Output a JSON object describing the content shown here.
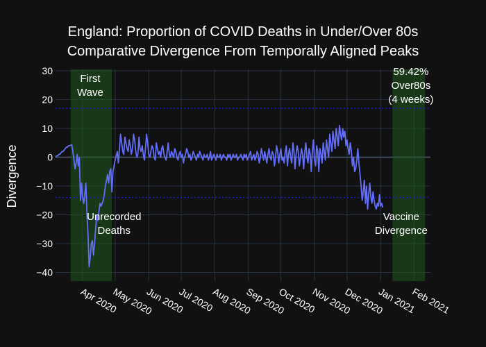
{
  "chart_data": {
    "type": "line",
    "title": "England: Proportion of COVID Deaths in Under/Over 80s",
    "subtitle": "Comparative Divergence From Temporally Aligned Peaks",
    "ylabel": "Divergence",
    "xlabel": "",
    "ylim": [
      -43,
      30.5
    ],
    "yticks": [
      30,
      20,
      10,
      0,
      -10,
      -20,
      -30,
      -40
    ],
    "xrange": [
      "2020-03-07",
      "2021-02-16"
    ],
    "xticks": [
      {
        "date": "2020-04-01",
        "label": "Apr 2020"
      },
      {
        "date": "2020-05-01",
        "label": "May 2020"
      },
      {
        "date": "2020-06-01",
        "label": "Jun 2020"
      },
      {
        "date": "2020-07-01",
        "label": "Jul 2020"
      },
      {
        "date": "2020-08-01",
        "label": "Aug 2020"
      },
      {
        "date": "2020-09-01",
        "label": "Sep 2020"
      },
      {
        "date": "2020-10-01",
        "label": "Oct 2020"
      },
      {
        "date": "2020-11-01",
        "label": "Nov 2020"
      },
      {
        "date": "2020-12-01",
        "label": "Dec 2020"
      },
      {
        "date": "2021-01-01",
        "label": "Jan 2021"
      },
      {
        "date": "2021-02-01",
        "label": "Feb 2021"
      }
    ],
    "grid": true,
    "colors": {
      "background": "#111111",
      "line": "#636efa",
      "band": "#1f5a1f",
      "hline": "#1a1ad8",
      "grid": "#283442",
      "zeroline": "#3c4c5c"
    },
    "hlines": [
      17,
      -14
    ],
    "bands": [
      {
        "start": "2020-03-21",
        "end": "2020-04-28"
      },
      {
        "start": "2021-01-12",
        "end": "2021-02-11"
      }
    ],
    "annotations": [
      {
        "lines": [
          "First",
          "Wave"
        ],
        "date": "2020-04-08",
        "y": 25
      },
      {
        "lines": [
          "Unrecorded",
          "Deaths"
        ],
        "date": "2020-04-30",
        "y": -23
      },
      {
        "lines": [
          "59.42%",
          "Over80s",
          "(4 weeks)"
        ],
        "date": "2021-01-29",
        "y": 25
      },
      {
        "lines": [
          "Vaccine",
          "Divergence"
        ],
        "date": "2021-01-20",
        "y": -23
      }
    ],
    "series": [
      {
        "x_start": "2020-03-07",
        "step_days": 1,
        "values": [
          0,
          0.5,
          0.5,
          1,
          1,
          1.5,
          2,
          2,
          2.5,
          3,
          3.5,
          3.5,
          4,
          4,
          4.2,
          4.3,
          2,
          -1,
          -4,
          -2,
          1,
          -3,
          0,
          -15,
          -9,
          -14,
          -16,
          -13,
          -9,
          -20,
          -27,
          -38,
          -35,
          -30,
          -29,
          -34,
          -30,
          -25,
          -20,
          -22,
          -19,
          -16,
          -17,
          -16,
          -15,
          -13,
          -10,
          -8,
          -6,
          -9,
          -5,
          -4,
          -12,
          -5,
          -3,
          -1,
          0.5,
          2,
          -2,
          3,
          8,
          5,
          2,
          1,
          7,
          5,
          3,
          2,
          6,
          4,
          1,
          3,
          8,
          6,
          2,
          0,
          1,
          7,
          3,
          2,
          4,
          1,
          -1,
          3,
          8,
          5,
          1,
          0,
          2,
          4,
          3,
          0,
          -1,
          5,
          3,
          1,
          2,
          0,
          3,
          4,
          1,
          0,
          -1,
          2,
          5,
          1,
          0,
          2,
          1,
          0,
          3,
          2,
          0,
          -1,
          1,
          2,
          0,
          1,
          -2,
          0,
          1,
          3,
          2,
          0,
          1,
          -1,
          0,
          2,
          1,
          0,
          -1,
          1,
          0,
          2,
          1,
          0,
          -1,
          1,
          0,
          0,
          1,
          -1,
          0,
          2,
          -1,
          0,
          1,
          0,
          -1,
          1,
          0,
          0,
          1,
          -1,
          0,
          1,
          0,
          0,
          -1,
          1,
          0,
          1,
          -1,
          0,
          1,
          0,
          0,
          1,
          -1,
          0,
          0,
          1,
          0,
          -1,
          1,
          0,
          1,
          -1,
          0,
          1,
          2,
          -1,
          0,
          1,
          -1,
          0,
          2,
          1,
          -2,
          0,
          3,
          1,
          -1,
          2,
          0,
          -2,
          1,
          3,
          0,
          -1,
          2,
          1,
          -3,
          0,
          4,
          2,
          -2,
          1,
          3,
          -1,
          0,
          -2,
          2,
          4,
          -3,
          1,
          3,
          0,
          -2,
          5,
          2,
          -4,
          1,
          4,
          2,
          -3,
          0,
          3,
          1,
          -4,
          2,
          5,
          0,
          -2,
          3,
          1,
          -5,
          2,
          6,
          -1,
          -3,
          4,
          2,
          -5,
          3,
          1,
          -2,
          5,
          2,
          -1,
          6,
          3,
          0,
          8,
          5,
          2,
          9,
          6,
          3,
          10,
          7,
          4,
          11,
          8,
          6,
          10,
          7,
          9,
          4,
          6,
          3,
          1,
          5,
          2,
          -3,
          0,
          -5,
          -4,
          -1,
          3,
          -2,
          -6,
          -10,
          -15,
          -12,
          -8,
          -16,
          -10,
          -18,
          -13,
          -9,
          -14,
          -16,
          -12,
          -15,
          -17,
          -18,
          -16,
          -17,
          -13,
          -17,
          -16,
          -17.5
        ]
      }
    ]
  }
}
